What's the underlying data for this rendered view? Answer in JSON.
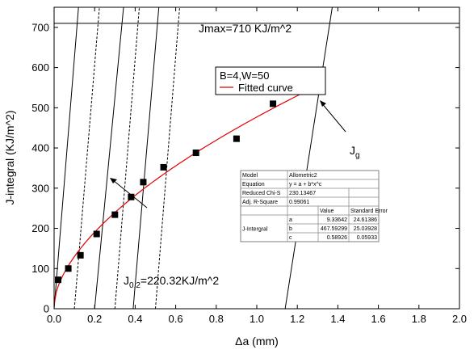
{
  "chart_data": {
    "type": "scatter",
    "xlabel": "Δa (mm)",
    "ylabel": "J-integral (KJ/m^2)",
    "xlim": [
      0.0,
      2.0
    ],
    "ylim": [
      0,
      750
    ],
    "xticks": [
      0.0,
      0.2,
      0.4,
      0.6,
      0.8,
      1.0,
      1.2,
      1.4,
      1.6,
      1.8,
      2.0
    ],
    "xtick_labels": [
      "0.0",
      "0.2",
      "0.4",
      "0.6",
      "0.8",
      "1.0",
      "1.2",
      "1.4",
      "1.6",
      "1.8",
      "2.0"
    ],
    "yticks": [
      0,
      100,
      200,
      300,
      400,
      500,
      600,
      700
    ],
    "ytick_labels": [
      "0",
      "100",
      "200",
      "300",
      "400",
      "500",
      "600",
      "700"
    ],
    "legend": {
      "placement": "top-right",
      "header": "B=4,W=50",
      "entries": [
        {
          "label": "Fitted curve",
          "color": "#e00000",
          "style": "line"
        }
      ]
    },
    "series": [
      {
        "kind": "points",
        "marker": "square",
        "color": "#000000",
        "x": [
          0.02,
          0.07,
          0.13,
          0.21,
          0.3,
          0.38,
          0.44,
          0.54,
          0.7,
          0.9,
          1.08,
          1.3
        ],
        "y": [
          72,
          100,
          133,
          186,
          234,
          278,
          315,
          352,
          388,
          423,
          510,
          550
        ]
      },
      {
        "kind": "fit",
        "name": "Fitted curve",
        "color": "#e00000",
        "model": "y = a + b*x^c",
        "params": {
          "a": 9.33642,
          "b": 467.59299,
          "c": 0.58926
        },
        "x_range": [
          0.0,
          1.3
        ]
      }
    ],
    "jmax_line": {
      "y": 710,
      "label": "Jmax=710 KJ/m^2"
    },
    "lines": [
      {
        "x_at_0": 0.0,
        "x_at_710": 0.114,
        "style": "solid"
      },
      {
        "x_at_0": 0.1,
        "x_at_710": 0.217,
        "style": "dashed"
      },
      {
        "x_at_0": 0.2,
        "x_at_710": 0.335,
        "style": "solid"
      },
      {
        "x_at_0": 0.3,
        "x_at_710": 0.414,
        "style": "dashed"
      },
      {
        "x_at_0": 0.39,
        "x_at_710": 0.51,
        "style": "solid"
      },
      {
        "x_at_0": 0.5,
        "x_at_710": 0.613,
        "style": "dashed"
      },
      {
        "x_at_0": 1.14,
        "x_at_710": 1.36,
        "style": "solid"
      }
    ],
    "annotations": {
      "j02": {
        "main": "J",
        "sub": "0.2",
        "rest": "=220.32KJ/m^2",
        "target": {
          "x": 0.28,
          "y": 222
        }
      },
      "jg": {
        "main": "J",
        "sub": "g",
        "target": {
          "x": 1.3,
          "y": 550
        }
      }
    },
    "fit_table": {
      "rows": [
        {
          "cells": [
            "Model",
            "Allometric2"
          ]
        },
        {
          "cells": [
            "Equation",
            "y = a + b*x^c"
          ]
        },
        {
          "cells": [
            "Reduced Chi-S",
            "230.13467"
          ]
        },
        {
          "cells": [
            "Adj. R-Square",
            "0.99061"
          ]
        }
      ],
      "header": [
        "",
        "",
        "Value",
        "Standard Error"
      ],
      "group_label": "J-Intergral",
      "params": [
        {
          "name": "a",
          "value": "9.33642",
          "error": "24.61386"
        },
        {
          "name": "b",
          "value": "467.59299",
          "error": "25.03928"
        },
        {
          "name": "c",
          "value": "0.58926",
          "error": "0.05933"
        }
      ]
    }
  }
}
